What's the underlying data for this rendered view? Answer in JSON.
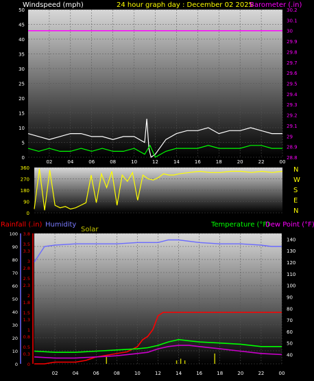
{
  "header": {
    "title": "24 hour graph day : December 02 2025",
    "left_label": "Windspeed (mph)",
    "right_label": "Barometer (.in)"
  },
  "bottom_header": {
    "rainfall": "Rainfall (.in)",
    "humidity": "Humidity",
    "solar": "Solar",
    "temperature": "Temperature (°F)",
    "dewpoint": "Dew Point (°F)"
  },
  "colors": {
    "title": "#ffff00",
    "wind_gust": "#ffffff",
    "wind_avg": "#00ff00",
    "barometer": "#ff00ff",
    "direction": "#ffff00",
    "rainfall": "#ff0000",
    "humidity": "#6a6aff",
    "solar": "#c8c800",
    "temperature": "#00ff00",
    "dewpoint": "#cc00cc",
    "dir_axis": "#ffff00"
  },
  "chart_data": [
    {
      "type": "line",
      "name": "wind-barometer",
      "x_ticks": [
        "02",
        "04",
        "06",
        "08",
        "10",
        "12",
        "14",
        "16",
        "18",
        "20",
        "22",
        "00"
      ],
      "x_range": [
        0,
        24
      ],
      "y_left_ticks": [
        "0",
        "5",
        "10",
        "15",
        "20",
        "25",
        "30",
        "35",
        "40",
        "45",
        "50"
      ],
      "y_left_range": [
        0,
        50
      ],
      "y_right_ticks": [
        "28.8",
        "28.9",
        "29",
        "29.1",
        "29.2",
        "29.3",
        "29.4",
        "29.5",
        "29.6",
        "29.7",
        "29.8",
        "29.9",
        "30",
        "30.1",
        "30.2"
      ],
      "y_right_range": [
        28.8,
        30.2
      ],
      "series": [
        {
          "key": "gust",
          "hours": [
            0,
            1,
            2,
            3,
            4,
            5,
            6,
            7,
            8,
            9,
            10,
            11,
            11.2,
            11.4,
            11.6,
            12,
            13,
            14,
            15,
            16,
            17,
            18,
            19,
            20,
            21,
            22,
            23,
            24
          ],
          "values": [
            8,
            7,
            6,
            7,
            8,
            8,
            7,
            7,
            6,
            7,
            7,
            5,
            13,
            3,
            0,
            1,
            6,
            8,
            9,
            9,
            10,
            8,
            9,
            9,
            10,
            9,
            8,
            8
          ]
        },
        {
          "key": "avg",
          "hours": [
            0,
            1,
            2,
            3,
            4,
            5,
            6,
            7,
            8,
            9,
            10,
            11,
            11.5,
            12,
            13,
            14,
            15,
            16,
            17,
            18,
            19,
            20,
            21,
            22,
            23,
            24
          ],
          "values": [
            3,
            2,
            3,
            2,
            2,
            3,
            2,
            3,
            2,
            2,
            3,
            1,
            4,
            0,
            2,
            3,
            3,
            3,
            4,
            3,
            3,
            3,
            4,
            4,
            3,
            3
          ]
        },
        {
          "key": "barometer",
          "hours": [
            0,
            24
          ],
          "values": [
            30.0,
            30.0
          ]
        }
      ]
    },
    {
      "type": "line",
      "name": "wind-direction",
      "y_ticks": [
        "0",
        "90",
        "180",
        "270",
        "360"
      ],
      "y_range": [
        0,
        360
      ],
      "compass": [
        "N",
        "W",
        "S",
        "E",
        "N"
      ],
      "series": [
        {
          "key": "direction",
          "hours": [
            0,
            0.5,
            1,
            1.5,
            2,
            2.5,
            3,
            3.5,
            4,
            4.5,
            5,
            5.5,
            6,
            6.5,
            7,
            7.5,
            8,
            8.5,
            9,
            9.5,
            10,
            10.5,
            11,
            11.5,
            12,
            12.5,
            13,
            13.5,
            14,
            15,
            16,
            17,
            18,
            19,
            20,
            21,
            22,
            23,
            24
          ],
          "values": [
            30,
            350,
            20,
            340,
            60,
            40,
            50,
            30,
            40,
            60,
            80,
            300,
            80,
            310,
            200,
            330,
            60,
            300,
            250,
            320,
            100,
            300,
            270,
            260,
            280,
            310,
            300,
            300,
            310,
            320,
            330,
            320,
            320,
            330,
            330,
            320,
            330,
            320,
            330
          ]
        }
      ]
    },
    {
      "type": "line",
      "name": "rain-humidity-temperature",
      "y_humidity_ticks": [
        "0",
        "10",
        "20",
        "30",
        "40",
        "50",
        "60",
        "70",
        "80",
        "90",
        "100"
      ],
      "y_humidity_range": [
        0,
        100
      ],
      "y_rain_ticks": [
        "0",
        "0.3",
        "0.5",
        "0.8",
        "1",
        "1.3",
        "1.5",
        "1.8",
        "2",
        "2.3",
        "2.5",
        "2.8",
        "3",
        "3.3",
        "3.5",
        "3.8"
      ],
      "y_rain_range": [
        0,
        3.8
      ],
      "y_temp_ticks": [
        "40",
        "50",
        "60",
        "70",
        "80",
        "90",
        "100",
        "110",
        "120",
        "130",
        "140"
      ],
      "y_temp_range": [
        32,
        145
      ],
      "series": [
        {
          "key": "humidity",
          "hours": [
            0,
            0.5,
            1,
            2,
            4,
            6,
            8,
            10,
            12,
            13,
            14,
            16,
            18,
            20,
            22,
            23,
            24
          ],
          "values": [
            78,
            84,
            90,
            91,
            92,
            92,
            92,
            93,
            93,
            95,
            95,
            93,
            92,
            92,
            91,
            90,
            90
          ]
        },
        {
          "key": "rainfall",
          "hours": [
            0,
            1,
            2,
            3,
            4,
            5,
            6,
            7,
            8,
            9,
            10,
            10.5,
            11,
            11.5,
            12,
            12.5,
            13,
            14,
            16,
            18,
            20,
            22,
            24
          ],
          "values": [
            0,
            0,
            0.05,
            0.05,
            0.05,
            0.1,
            0.2,
            0.25,
            0.3,
            0.35,
            0.5,
            0.7,
            0.8,
            1.0,
            1.4,
            1.5,
            1.5,
            1.5,
            1.5,
            1.5,
            1.5,
            1.5,
            1.5
          ]
        },
        {
          "key": "temperature",
          "hours": [
            0,
            2,
            4,
            6,
            8,
            10,
            11,
            12,
            13,
            14,
            15,
            16,
            18,
            20,
            22,
            24
          ],
          "values": [
            43,
            42,
            42,
            43,
            44,
            45,
            46,
            48,
            51,
            53,
            52,
            51,
            50,
            49,
            47,
            47
          ]
        },
        {
          "key": "dewpoint",
          "hours": [
            0,
            2,
            4,
            6,
            8,
            10,
            11,
            12,
            13,
            14,
            15,
            16,
            18,
            20,
            22,
            24
          ],
          "values": [
            38,
            37,
            37,
            38,
            39,
            41,
            42,
            45,
            47,
            48,
            48,
            47,
            45,
            43,
            41,
            40
          ]
        },
        {
          "key": "solar",
          "hours": [
            7,
            13.8,
            14.2,
            14.6,
            17.5
          ],
          "values": [
            0.2,
            0.1,
            0.15,
            0.1,
            0.3
          ]
        }
      ]
    }
  ]
}
